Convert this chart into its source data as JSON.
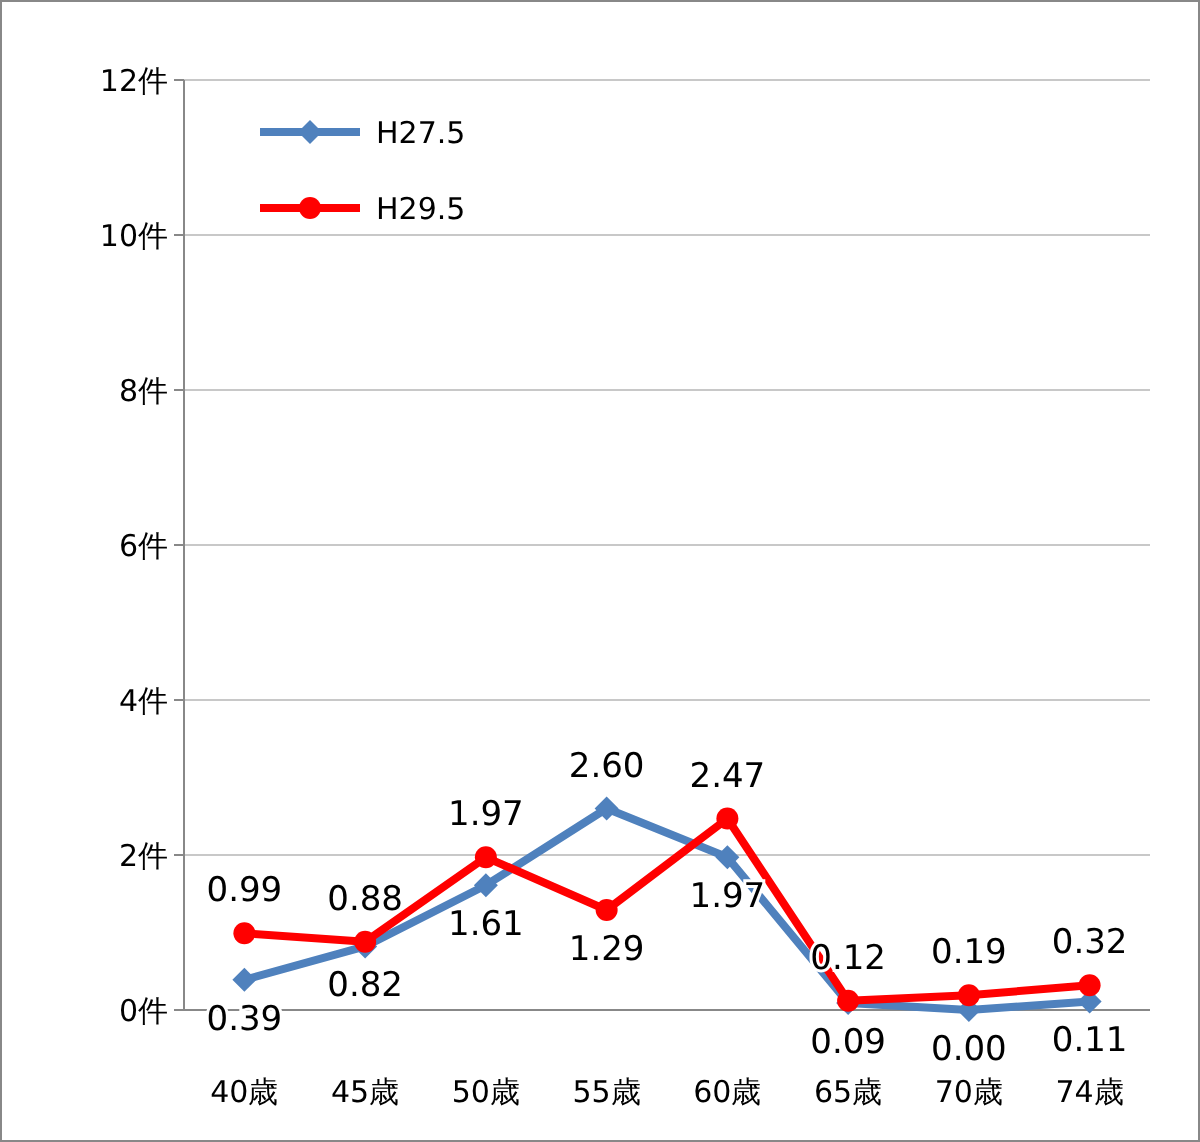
{
  "chart_data": {
    "type": "line",
    "categories": [
      "40歳",
      "45歳",
      "50歳",
      "55歳",
      "60歳",
      "65歳",
      "70歳",
      "74歳"
    ],
    "series": [
      {
        "name": "H27.5",
        "color": "#4f81bd",
        "marker": "diamond",
        "values": [
          0.39,
          0.82,
          1.61,
          2.6,
          1.97,
          0.09,
          0.0,
          0.11
        ],
        "value_labels": [
          "0.39",
          "0.82",
          "1.61",
          "2.60",
          "1.97",
          "0.09",
          "0.00",
          "0.11"
        ]
      },
      {
        "name": "H29.5",
        "color": "#ff0000",
        "marker": "circle",
        "values": [
          0.99,
          0.88,
          1.97,
          1.29,
          2.47,
          0.12,
          0.19,
          0.32
        ],
        "value_labels": [
          "0.99",
          "0.88",
          "1.97",
          "1.29",
          "2.47",
          "0.12",
          "0.19",
          "0.32"
        ]
      }
    ],
    "ylim": [
      0,
      12
    ],
    "yticks": [
      {
        "value": 0,
        "label": "0件"
      },
      {
        "value": 2,
        "label": "2件"
      },
      {
        "value": 4,
        "label": "4件"
      },
      {
        "value": 6,
        "label": "6件"
      },
      {
        "value": 8,
        "label": "8件"
      },
      {
        "value": 10,
        "label": "10件"
      },
      {
        "value": 12,
        "label": "12件"
      }
    ],
    "grid": "y",
    "legend": "top left"
  }
}
